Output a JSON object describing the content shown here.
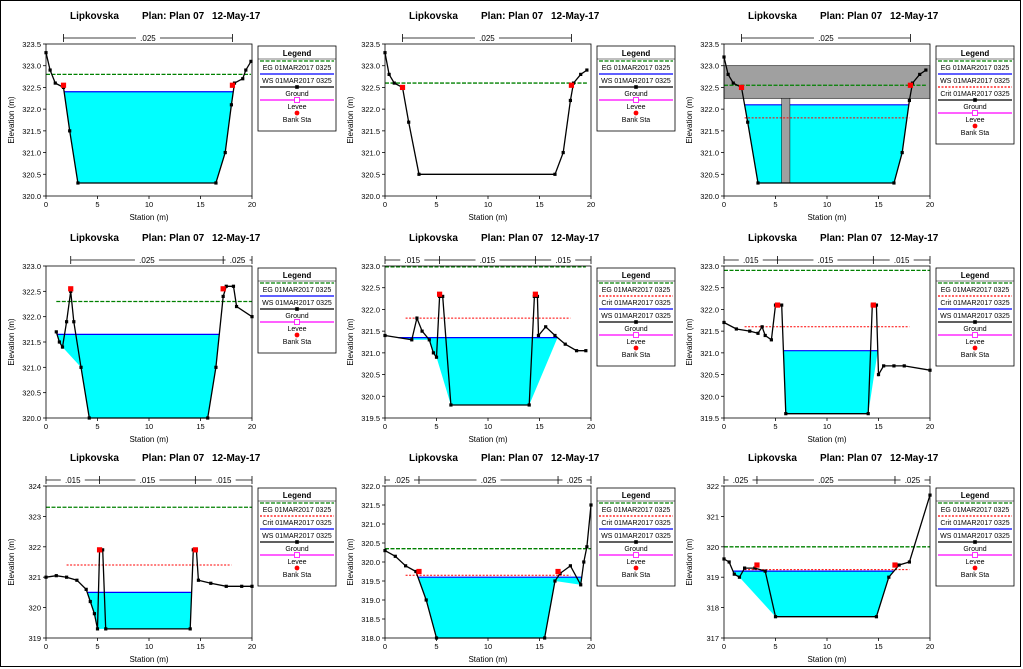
{
  "common": {
    "river": "Lipkovska",
    "plan": "Plan: Plan 07",
    "date": "12-May-17",
    "xlabel": "Station (m)",
    "ylabel": "Elevation (m)",
    "legend_title": "Legend",
    "colors": {
      "eg": "#008000",
      "crit": "#ff0000",
      "ws": "#0000ff",
      "ground": "#000000",
      "levee": "#ff00ff",
      "bank": "#ff0000",
      "water": "#00ffff",
      "bridge": "#a0a0a0"
    }
  },
  "chart_data": [
    {
      "type": "line",
      "title": "Lipkovska    Plan: Plan 07    12-May-17",
      "xlim": [
        0,
        20
      ],
      "xticks": [
        0,
        5,
        10,
        15,
        20
      ],
      "ylim": [
        320.0,
        323.5
      ],
      "yticks": [
        "320.0",
        "320.5",
        "321.0",
        "321.5",
        "322.0",
        "322.5",
        "323.0",
        "323.5"
      ],
      "ground": [
        [
          0,
          323.3
        ],
        [
          0.4,
          322.9
        ],
        [
          0.9,
          322.6
        ],
        [
          1.7,
          322.5
        ],
        [
          2.3,
          321.5
        ],
        [
          3.1,
          320.3
        ],
        [
          16.5,
          320.3
        ],
        [
          17.4,
          321.0
        ],
        [
          18.0,
          322.1
        ],
        [
          18.3,
          322.6
        ],
        [
          19.1,
          322.7
        ],
        [
          19.4,
          322.9
        ],
        [
          19.9,
          323.1
        ]
      ],
      "ws": 322.4,
      "eg": 322.8,
      "crit": null,
      "bank": [
        [
          1.7,
          322.55
        ],
        [
          18.1,
          322.55
        ]
      ],
      "manning": [
        ".025"
      ],
      "legend": [
        "EG 01MAR2017 0325",
        "WS 01MAR2017 0325",
        "Ground",
        "Levee",
        "Bank Sta"
      ]
    },
    {
      "type": "line",
      "title": "Lipkovska    Plan: Plan 07    12-May-17",
      "xlim": [
        0,
        20
      ],
      "xticks": [
        0,
        5,
        10,
        15,
        20
      ],
      "ylim": [
        320.0,
        323.5
      ],
      "yticks": [
        "320.0",
        "320.5",
        "321.0",
        "321.5",
        "322.0",
        "322.5",
        "323.0",
        "323.5"
      ],
      "ground": [
        [
          0,
          323.3
        ],
        [
          0.4,
          322.8
        ],
        [
          0.9,
          322.6
        ],
        [
          1.7,
          322.5
        ],
        [
          2.3,
          321.7
        ],
        [
          3.3,
          320.5
        ],
        [
          16.5,
          320.5
        ],
        [
          17.3,
          321.0
        ],
        [
          18.0,
          322.2
        ],
        [
          18.3,
          322.6
        ],
        [
          19.0,
          322.8
        ],
        [
          19.6,
          322.9
        ]
      ],
      "ws": 322.2,
      "eg": 322.6,
      "crit": null,
      "bank": [
        [
          1.7,
          322.5
        ],
        [
          18.1,
          322.55
        ]
      ],
      "manning": [
        ".025"
      ],
      "legend": [
        "EG 01MAR2017 0325",
        "WS 01MAR2017 0325",
        "Ground",
        "Levee",
        "Bank Sta"
      ]
    },
    {
      "type": "line",
      "title": "Lipkovska    Plan: Plan 07    12-May-17",
      "xlim": [
        0,
        20
      ],
      "xticks": [
        0,
        5,
        10,
        15,
        20
      ],
      "ylim": [
        320.0,
        323.5
      ],
      "yticks": [
        "320.0",
        "320.5",
        "321.0",
        "321.5",
        "322.0",
        "322.5",
        "323.0",
        "323.5"
      ],
      "ground": [
        [
          0,
          323.2
        ],
        [
          0.4,
          322.8
        ],
        [
          0.9,
          322.6
        ],
        [
          1.7,
          322.5
        ],
        [
          2.3,
          321.7
        ],
        [
          3.3,
          320.3
        ],
        [
          16.5,
          320.3
        ],
        [
          17.3,
          321.0
        ],
        [
          18.0,
          322.2
        ],
        [
          18.3,
          322.6
        ],
        [
          19.0,
          322.8
        ],
        [
          19.6,
          322.9
        ]
      ],
      "ws": 322.1,
      "eg": 322.55,
      "crit": 321.8,
      "bank": [
        [
          1.7,
          322.5
        ],
        [
          18.1,
          322.55
        ]
      ],
      "bridge": {
        "deck_top": 323.0,
        "deck_bottom": 322.25,
        "pier": [
          5.6,
          6.4
        ]
      },
      "manning": [
        ".025"
      ],
      "legend": [
        "EG 01MAR2017 0325",
        "WS 01MAR2017 0325",
        "Crit 01MAR2017 0325",
        "Ground",
        "Levee",
        "Bank Sta"
      ]
    },
    {
      "type": "line",
      "title": "Lipkovska    Plan: Plan 07    12-May-17",
      "xlim": [
        0,
        20
      ],
      "xticks": [
        0,
        5,
        10,
        15,
        20
      ],
      "ylim": [
        320.0,
        323.0
      ],
      "yticks": [
        "320.0",
        "320.5",
        "321.0",
        "321.5",
        "322.0",
        "322.5",
        "323.0"
      ],
      "ground": [
        [
          1.0,
          321.7
        ],
        [
          1.3,
          321.5
        ],
        [
          1.6,
          321.4
        ],
        [
          2.0,
          321.9
        ],
        [
          2.4,
          322.5
        ],
        [
          2.7,
          321.9
        ],
        [
          3.4,
          321.0
        ],
        [
          4.2,
          320.0
        ],
        [
          15.7,
          320.0
        ],
        [
          16.5,
          321.0
        ],
        [
          17.2,
          322.4
        ],
        [
          17.5,
          322.6
        ],
        [
          18.2,
          322.6
        ],
        [
          18.5,
          322.2
        ],
        [
          20.0,
          322.0
        ]
      ],
      "ws": 321.65,
      "eg": 322.3,
      "crit": null,
      "bank": [
        [
          2.4,
          322.55
        ],
        [
          17.2,
          322.55
        ]
      ],
      "manning": [
        ".025",
        ".025"
      ],
      "legend": [
        "EG 01MAR2017 0325",
        "WS 01MAR2017 0325",
        "Ground",
        "Levee",
        "Bank Sta"
      ]
    },
    {
      "type": "line",
      "title": "Lipkovska    Plan: Plan 07    12-May-17",
      "xlim": [
        0,
        20
      ],
      "xticks": [
        0,
        5,
        10,
        15,
        20
      ],
      "ylim": [
        319.5,
        323.0
      ],
      "yticks": [
        "319.5",
        "320.0",
        "320.5",
        "321.0",
        "321.5",
        "322.0",
        "322.5",
        "323.0"
      ],
      "ground": [
        [
          0,
          321.4
        ],
        [
          2.6,
          321.3
        ],
        [
          3.1,
          321.8
        ],
        [
          3.6,
          321.5
        ],
        [
          4.3,
          321.3
        ],
        [
          4.7,
          321.0
        ],
        [
          5.0,
          320.9
        ],
        [
          5.3,
          322.3
        ],
        [
          5.6,
          322.3
        ],
        [
          6.4,
          319.8
        ],
        [
          14.0,
          319.8
        ],
        [
          14.5,
          322.3
        ],
        [
          14.8,
          322.3
        ],
        [
          14.9,
          321.4
        ],
        [
          15.6,
          321.6
        ],
        [
          16.5,
          321.4
        ],
        [
          17.5,
          321.2
        ],
        [
          18.6,
          321.05
        ],
        [
          19.5,
          321.05
        ]
      ],
      "ws": 321.35,
      "eg": 322.98,
      "crit": 321.8,
      "bank": [
        [
          5.3,
          322.35
        ],
        [
          14.6,
          322.35
        ]
      ],
      "manning": [
        ".015",
        ".015",
        ".015"
      ],
      "legend": [
        "EG 01MAR2017 0325",
        "Crit 01MAR2017 0325",
        "WS 01MAR2017 0325",
        "Ground",
        "Levee",
        "Bank Sta"
      ]
    },
    {
      "type": "line",
      "title": "Lipkovska    Plan: Plan 07    12-May-17",
      "xlim": [
        0,
        20
      ],
      "xticks": [
        0,
        5,
        10,
        15,
        20
      ],
      "ylim": [
        319.5,
        323.0
      ],
      "yticks": [
        "319.5",
        "320.0",
        "320.5",
        "321.0",
        "321.5",
        "322.0",
        "322.5",
        "323.0"
      ],
      "ground": [
        [
          0,
          321.7
        ],
        [
          1.2,
          321.55
        ],
        [
          2.5,
          321.5
        ],
        [
          3.3,
          321.45
        ],
        [
          3.7,
          321.6
        ],
        [
          4.0,
          321.4
        ],
        [
          4.6,
          321.3
        ],
        [
          5.0,
          322.1
        ],
        [
          5.6,
          322.1
        ],
        [
          6.0,
          319.6
        ],
        [
          14.0,
          319.6
        ],
        [
          14.4,
          322.1
        ],
        [
          14.8,
          322.1
        ],
        [
          15.0,
          320.5
        ],
        [
          15.5,
          320.7
        ],
        [
          16.5,
          320.7
        ],
        [
          17.5,
          320.7
        ],
        [
          20.0,
          320.6
        ]
      ],
      "ws": 321.05,
      "eg": 322.9,
      "crit": 321.6,
      "bank": [
        [
          5.2,
          322.1
        ],
        [
          14.5,
          322.1
        ]
      ],
      "manning": [
        ".015",
        ".015",
        ".015"
      ],
      "legend": [
        "EG 01MAR2017 0325",
        "Crit 01MAR2017 0325",
        "WS 01MAR2017 0325",
        "Ground",
        "Levee",
        "Bank Sta"
      ]
    },
    {
      "type": "line",
      "title": "Lipkovska    Plan: Plan 07    12-May-17",
      "xlim": [
        0,
        20
      ],
      "xticks": [
        0,
        5,
        10,
        15,
        20
      ],
      "ylim": [
        319,
        324
      ],
      "yticks": [
        "319",
        "320",
        "321",
        "322",
        "323",
        "324"
      ],
      "ground": [
        [
          0,
          321.0
        ],
        [
          1.0,
          321.05
        ],
        [
          2.0,
          321.0
        ],
        [
          3.0,
          320.9
        ],
        [
          3.9,
          320.6
        ],
        [
          4.3,
          320.2
        ],
        [
          4.7,
          319.8
        ],
        [
          5.0,
          319.3
        ],
        [
          5.2,
          321.9
        ],
        [
          5.5,
          321.9
        ],
        [
          5.8,
          319.3
        ],
        [
          14.0,
          319.3
        ],
        [
          14.3,
          321.9
        ],
        [
          14.6,
          321.9
        ],
        [
          14.8,
          320.9
        ],
        [
          16.0,
          320.8
        ],
        [
          17.5,
          320.7
        ],
        [
          19.0,
          320.7
        ],
        [
          20.0,
          320.7
        ]
      ],
      "ws": 320.5,
      "eg": 323.3,
      "crit": 321.4,
      "bank": [
        [
          5.2,
          321.9
        ],
        [
          14.5,
          321.9
        ]
      ],
      "manning": [
        ".015",
        ".015",
        ".015"
      ],
      "legend": [
        "EG 01MAR2017 0325",
        "Crit 01MAR2017 0325",
        "WS 01MAR2017 0325",
        "Ground",
        "Levee",
        "Bank Sta"
      ]
    },
    {
      "type": "line",
      "title": "Lipkovska    Plan: Plan 07    12-May-17",
      "xlim": [
        0,
        20
      ],
      "xticks": [
        0,
        5,
        10,
        15,
        20
      ],
      "ylim": [
        318.0,
        322.0
      ],
      "yticks": [
        "318.0",
        "318.5",
        "319.0",
        "319.5",
        "320.0",
        "320.5",
        "321.0",
        "321.5",
        "322.0"
      ],
      "ground": [
        [
          0,
          320.3
        ],
        [
          1.0,
          320.15
        ],
        [
          2.0,
          319.9
        ],
        [
          3.0,
          319.75
        ],
        [
          4.0,
          319.0
        ],
        [
          5.0,
          318.0
        ],
        [
          15.5,
          318.0
        ],
        [
          16.5,
          319.5
        ],
        [
          17.0,
          319.7
        ],
        [
          18.0,
          319.9
        ],
        [
          19.0,
          319.4
        ],
        [
          19.3,
          320.0
        ],
        [
          19.6,
          320.4
        ],
        [
          20.0,
          321.5
        ]
      ],
      "ws": 319.6,
      "eg": 320.35,
      "crit": 319.65,
      "bank": [
        [
          3.3,
          319.75
        ],
        [
          16.8,
          319.75
        ]
      ],
      "manning": [
        ".025",
        ".025",
        ".025"
      ],
      "legend": [
        "EG 01MAR2017 0325",
        "Crit 01MAR2017 0325",
        "WS 01MAR2017 0325",
        "Ground",
        "Levee",
        "Bank Sta"
      ]
    },
    {
      "type": "line",
      "title": "Lipkovska    Plan: Plan 07    12-May-17",
      "xlim": [
        0,
        20
      ],
      "xticks": [
        0,
        5,
        10,
        15,
        20
      ],
      "ylim": [
        317,
        322
      ],
      "yticks": [
        "317",
        "318",
        "319",
        "320",
        "321",
        "322"
      ],
      "ground": [
        [
          0,
          319.6
        ],
        [
          0.5,
          319.5
        ],
        [
          1.0,
          319.1
        ],
        [
          1.5,
          319.0
        ],
        [
          2.0,
          319.3
        ],
        [
          3.0,
          319.3
        ],
        [
          4.0,
          319.2
        ],
        [
          5.0,
          317.7
        ],
        [
          14.8,
          317.7
        ],
        [
          16.0,
          319.0
        ],
        [
          17.0,
          319.4
        ],
        [
          18.0,
          319.5
        ],
        [
          20.0,
          321.7
        ]
      ],
      "ws": 319.2,
      "eg": 320.0,
      "crit": 319.25,
      "bank": [
        [
          3.2,
          319.4
        ],
        [
          16.6,
          319.4
        ]
      ],
      "manning": [
        ".025",
        ".025",
        ".025"
      ],
      "legend": [
        "EG 01MAR2017 0325",
        "Crit 01MAR2017 0325",
        "WS 01MAR2017 0325",
        "Ground",
        "Levee",
        "Bank Sta"
      ]
    }
  ]
}
